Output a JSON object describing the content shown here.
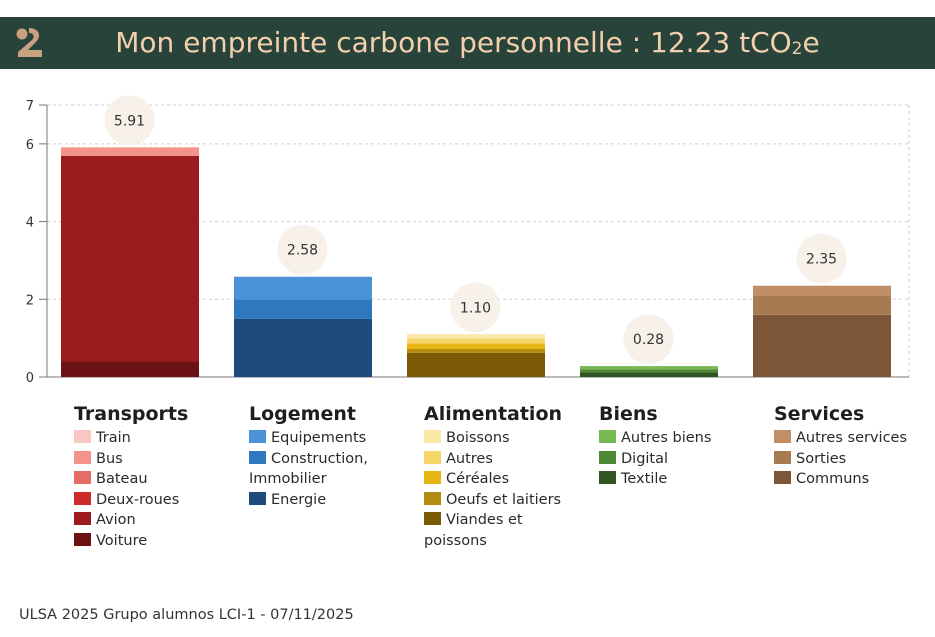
{
  "header": {
    "title_main": "Mon empreinte carbone personnelle : 12.23 tCO",
    "title_sub": "2",
    "title_end": "e",
    "colors": {
      "banner": "#27433a",
      "title": "#f3cfad",
      "logo": "#c9a181"
    }
  },
  "footer": {
    "text": "ULSA 2025 Grupo alumnos LCI-1 - 07/11/2025"
  },
  "chart_data": {
    "type": "bar",
    "stacked": true,
    "ylim": [
      0,
      7
    ],
    "yticks": [
      0,
      2,
      4,
      6,
      7
    ],
    "grid": true,
    "legend_placement": "bottom",
    "categories": [
      {
        "name": "Transports",
        "total_label": "5.91",
        "segments": [
          {
            "label": "Voiture",
            "value": 0.4,
            "color": "#6b1214"
          },
          {
            "label": "Avion",
            "value": 5.29,
            "color": "#9c1b1d"
          },
          {
            "label": "Deux-roues",
            "value": 0.0,
            "color": "#cf2a2a"
          },
          {
            "label": "Bateau",
            "value": 0.0,
            "color": "#e86c66"
          },
          {
            "label": "Bus",
            "value": 0.22,
            "color": "#f3938a"
          },
          {
            "label": "Train",
            "value": 0.0,
            "color": "#f8c7c3"
          }
        ]
      },
      {
        "name": "Logement",
        "total_label": "2.58",
        "segments": [
          {
            "label": "Energie",
            "value": 1.5,
            "color": "#1c4b7c"
          },
          {
            "label": "Construction, Immobilier",
            "value": 0.5,
            "color": "#2e78c0"
          },
          {
            "label": "Equipements",
            "value": 0.58,
            "color": "#4b92d8"
          }
        ]
      },
      {
        "name": "Alimentation",
        "total_label": "1.10",
        "segments": [
          {
            "label": "Viandes et poissons",
            "value": 0.62,
            "color": "#7a5a05"
          },
          {
            "label": "Oeufs et laitiers",
            "value": 0.1,
            "color": "#b38b10"
          },
          {
            "label": "Céréales",
            "value": 0.14,
            "color": "#e7b612"
          },
          {
            "label": "Autres",
            "value": 0.13,
            "color": "#f6d569"
          },
          {
            "label": "Boissons",
            "value": 0.11,
            "color": "#fbe7a8"
          }
        ]
      },
      {
        "name": "Biens",
        "total_label": "0.28",
        "segments": [
          {
            "label": "Textile",
            "value": 0.12,
            "color": "#2f5523"
          },
          {
            "label": "Digital",
            "value": 0.08,
            "color": "#4e8a34"
          },
          {
            "label": "Autres biens",
            "value": 0.08,
            "color": "#76b852"
          }
        ]
      },
      {
        "name": "Services",
        "total_label": "2.35",
        "segments": [
          {
            "label": "Communs",
            "value": 1.6,
            "color": "#7c5636"
          },
          {
            "label": "Sorties",
            "value": 0.5,
            "color": "#a87a52"
          },
          {
            "label": "Autres services",
            "value": 0.25,
            "color": "#c08f68"
          }
        ]
      }
    ]
  },
  "legend": [
    {
      "title": "Transports",
      "items": [
        {
          "label": "Train",
          "color": "#f8c7c3"
        },
        {
          "label": "Bus",
          "color": "#f3938a"
        },
        {
          "label": "Bateau",
          "color": "#e86c66"
        },
        {
          "label": "Deux-roues",
          "color": "#cf2a2a"
        },
        {
          "label": "Avion",
          "color": "#9c1b1d"
        },
        {
          "label": "Voiture",
          "color": "#6b1214"
        }
      ]
    },
    {
      "title": "Logement",
      "items": [
        {
          "label": "Equipements",
          "color": "#4b92d8"
        },
        {
          "label": "Construction, Immobilier",
          "color": "#2e78c0"
        },
        {
          "label": "Energie",
          "color": "#1c4b7c"
        }
      ]
    },
    {
      "title": "Alimentation",
      "items": [
        {
          "label": "Boissons",
          "color": "#fbe7a8"
        },
        {
          "label": "Autres",
          "color": "#f6d569"
        },
        {
          "label": "Céréales",
          "color": "#e7b612"
        },
        {
          "label": "Oeufs et laitiers",
          "color": "#b38b10"
        },
        {
          "label": "Viandes et poissons",
          "color": "#7a5a05"
        }
      ]
    },
    {
      "title": "Biens",
      "items": [
        {
          "label": "Autres biens",
          "color": "#76b852"
        },
        {
          "label": "Digital",
          "color": "#4e8a34"
        },
        {
          "label": "Textile",
          "color": "#2f5523"
        }
      ]
    },
    {
      "title": "Services",
      "items": [
        {
          "label": "Autres services",
          "color": "#c08f68"
        },
        {
          "label": "Sorties",
          "color": "#a87a52"
        },
        {
          "label": "Communs",
          "color": "#7c5636"
        }
      ]
    }
  ]
}
